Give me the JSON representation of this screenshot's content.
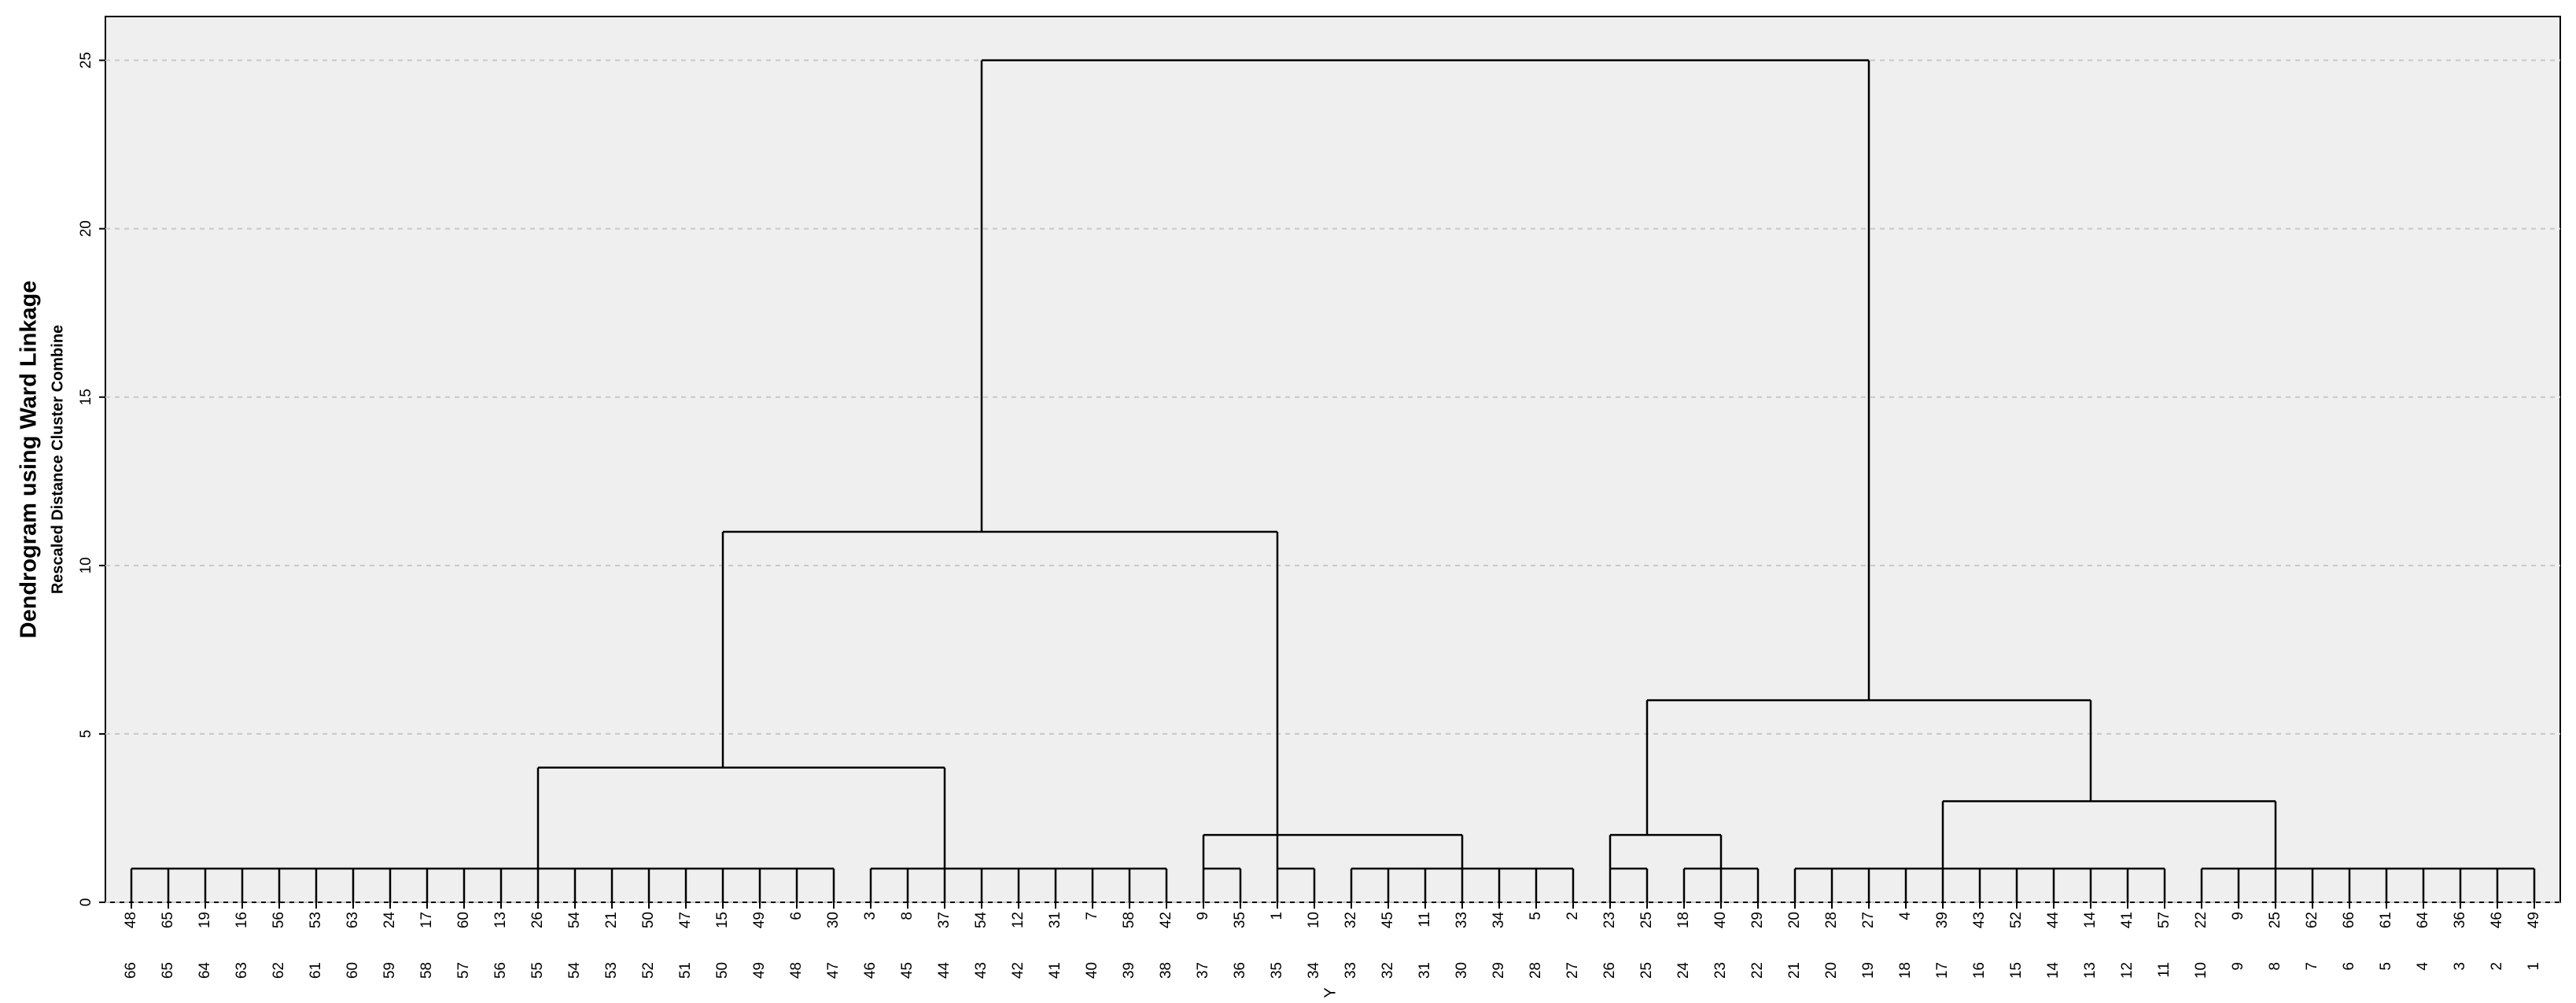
{
  "chart_data": {
    "type": "dendrogram",
    "title": "Dendrogram using Ward Linkage",
    "subtitle": "Rescaled Distance Cluster Combine",
    "x_label": "Y",
    "ylim": [
      0,
      26.3
    ],
    "yticks": [
      0,
      5,
      10,
      15,
      20,
      25
    ],
    "grid": true,
    "color": "#000000",
    "leaf_labels": [
      "48",
      "65",
      "19",
      "16",
      "56",
      "53",
      "63",
      "24",
      "17",
      "60",
      "13",
      "26",
      "54",
      "21",
      "50",
      "47",
      "15",
      "49",
      "6",
      "30",
      "3",
      "8",
      "37",
      "54",
      "12",
      "31",
      "7",
      "58",
      "42",
      "9",
      "35",
      "1",
      "10",
      "32",
      "45",
      "11",
      "33",
      "34",
      "5",
      "2",
      "23",
      "25",
      "18",
      "40",
      "29",
      "20",
      "28",
      "27",
      "4",
      "39",
      "43",
      "52",
      "44",
      "14",
      "41",
      "57",
      "22",
      "9",
      "25",
      "62",
      "66",
      "61",
      "64",
      "36",
      "46",
      "49"
    ],
    "leaf_ids": [
      "66",
      "65",
      "64",
      "63",
      "62",
      "61",
      "60",
      "59",
      "58",
      "57",
      "56",
      "55",
      "54",
      "53",
      "52",
      "51",
      "50",
      "49",
      "48",
      "47",
      "46",
      "45",
      "44",
      "43",
      "42",
      "41",
      "40",
      "39",
      "38",
      "37",
      "36",
      "35",
      "34",
      "33",
      "32",
      "31",
      "30",
      "29",
      "28",
      "27",
      "26",
      "25",
      "24",
      "23",
      "22",
      "21",
      "20",
      "19",
      "18",
      "17",
      "16",
      "15",
      "14",
      "13",
      "12",
      "11",
      "10",
      "9",
      "8",
      "7",
      "6",
      "5",
      "4",
      "3",
      "2",
      "1"
    ],
    "merges": [
      {
        "height": 1,
        "leaves": [
          0,
          19
        ],
        "attach": 11
      },
      {
        "height": 1,
        "leaves": [
          20,
          28
        ],
        "attach": 22
      },
      {
        "height": 4,
        "children": [
          0,
          1
        ],
        "attach": 16
      },
      {
        "height": 1,
        "leaves": [
          29,
          30
        ],
        "attach": 29
      },
      {
        "height": 1,
        "leaves": [
          31,
          32
        ],
        "attach": 31
      },
      {
        "height": 1,
        "leaves": [
          33,
          39
        ],
        "attach": 36
      },
      {
        "height": 2,
        "children": [
          3,
          4,
          5
        ],
        "attach": 31
      },
      {
        "height": 11,
        "children": [
          2,
          6
        ],
        "attach": 23
      },
      {
        "height": 1,
        "leaves": [
          40,
          41
        ],
        "attach": 40
      },
      {
        "height": 1,
        "leaves": [
          42,
          44
        ],
        "attach": 43
      },
      {
        "height": 2,
        "children": [
          8,
          9
        ],
        "attach": 41
      },
      {
        "height": 1,
        "leaves": [
          45,
          55
        ],
        "attach": 49
      },
      {
        "height": 1,
        "leaves": [
          56,
          65
        ],
        "attach": 58
      },
      {
        "height": 3,
        "children": [
          11,
          12
        ],
        "attach": 53
      },
      {
        "height": 6,
        "children": [
          10,
          13
        ],
        "attach": 47
      },
      {
        "height": 25,
        "children": [
          7,
          14
        ]
      }
    ]
  }
}
